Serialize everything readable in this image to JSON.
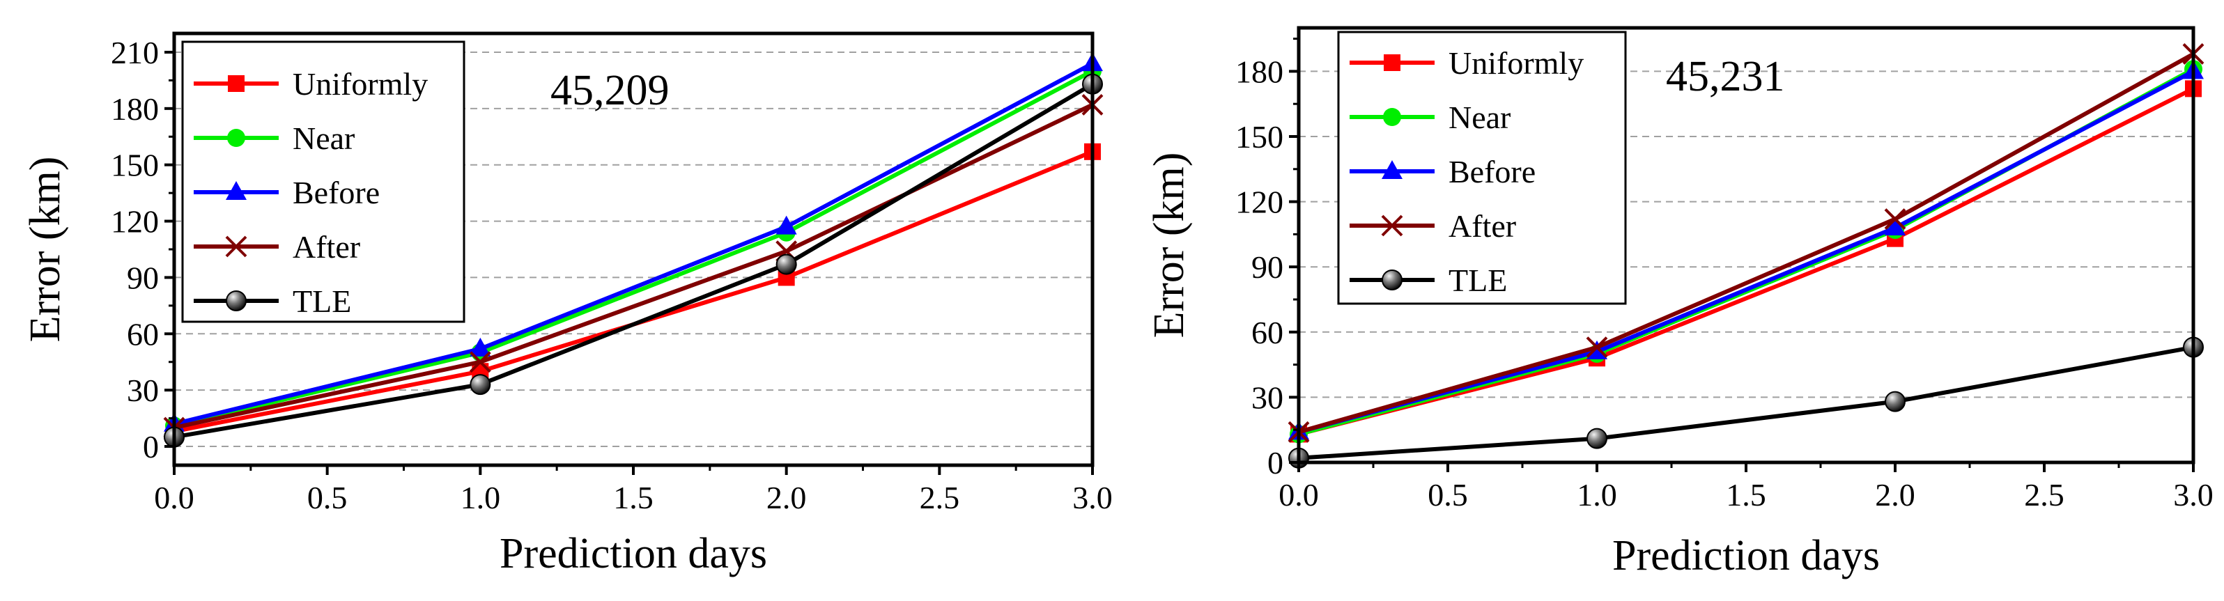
{
  "colors": {
    "uniformly": "#ff0000",
    "near": "#00ee00",
    "before": "#0000ff",
    "after": "#800000",
    "tle": "#000000",
    "grid": "#a0a0a0"
  },
  "chart_data": [
    {
      "type": "line",
      "title": "",
      "annotation": "45,209",
      "xlabel": "Prediction days",
      "ylabel": "Error (km)",
      "xlim": [
        0,
        3
      ],
      "ylim": [
        -10,
        220
      ],
      "xticks": [
        "0.0",
        "0.5",
        "1.0",
        "1.5",
        "2.0",
        "2.5",
        "3.0"
      ],
      "yticks": [
        "0",
        "30",
        "60",
        "90",
        "120",
        "150",
        "180",
        "210"
      ],
      "grid": "horizontal dashed",
      "legend_position": "top-left",
      "x": [
        0,
        1,
        2,
        3
      ],
      "series": [
        {
          "key": "uniformly",
          "name": "Uniformly",
          "marker": "square",
          "values": [
            8,
            40,
            90,
            157
          ]
        },
        {
          "key": "near",
          "name": "Near",
          "marker": "circle",
          "values": [
            11,
            50,
            114,
            200
          ]
        },
        {
          "key": "before",
          "name": "Before",
          "marker": "triangle",
          "values": [
            12,
            52,
            117,
            204
          ]
        },
        {
          "key": "after",
          "name": "After",
          "marker": "x",
          "values": [
            10,
            45,
            104,
            182
          ]
        },
        {
          "key": "tle",
          "name": "TLE",
          "marker": "ball",
          "values": [
            5,
            33,
            97,
            193
          ]
        }
      ]
    },
    {
      "type": "line",
      "title": "",
      "annotation": "45,231",
      "xlabel": "Prediction days",
      "ylabel": "Error (km)",
      "xlim": [
        0,
        3
      ],
      "ylim": [
        0,
        200
      ],
      "xticks": [
        "0.0",
        "0.5",
        "1.0",
        "1.5",
        "2.0",
        "2.5",
        "3.0"
      ],
      "yticks": [
        "0",
        "30",
        "60",
        "90",
        "120",
        "150",
        "180"
      ],
      "grid": "horizontal dashed",
      "legend_position": "top-left",
      "x": [
        0,
        1,
        2,
        3
      ],
      "series": [
        {
          "key": "uniformly",
          "name": "Uniformly",
          "marker": "square",
          "values": [
            13,
            48,
            103,
            172
          ]
        },
        {
          "key": "near",
          "name": "Near",
          "marker": "circle",
          "values": [
            13,
            50,
            107,
            181
          ]
        },
        {
          "key": "before",
          "name": "Before",
          "marker": "triangle",
          "values": [
            14,
            51,
            108,
            180
          ]
        },
        {
          "key": "after",
          "name": "After",
          "marker": "x",
          "values": [
            14,
            53,
            112,
            188
          ]
        },
        {
          "key": "tle",
          "name": "TLE",
          "marker": "ball",
          "values": [
            2,
            11,
            28,
            53
          ]
        }
      ]
    }
  ]
}
